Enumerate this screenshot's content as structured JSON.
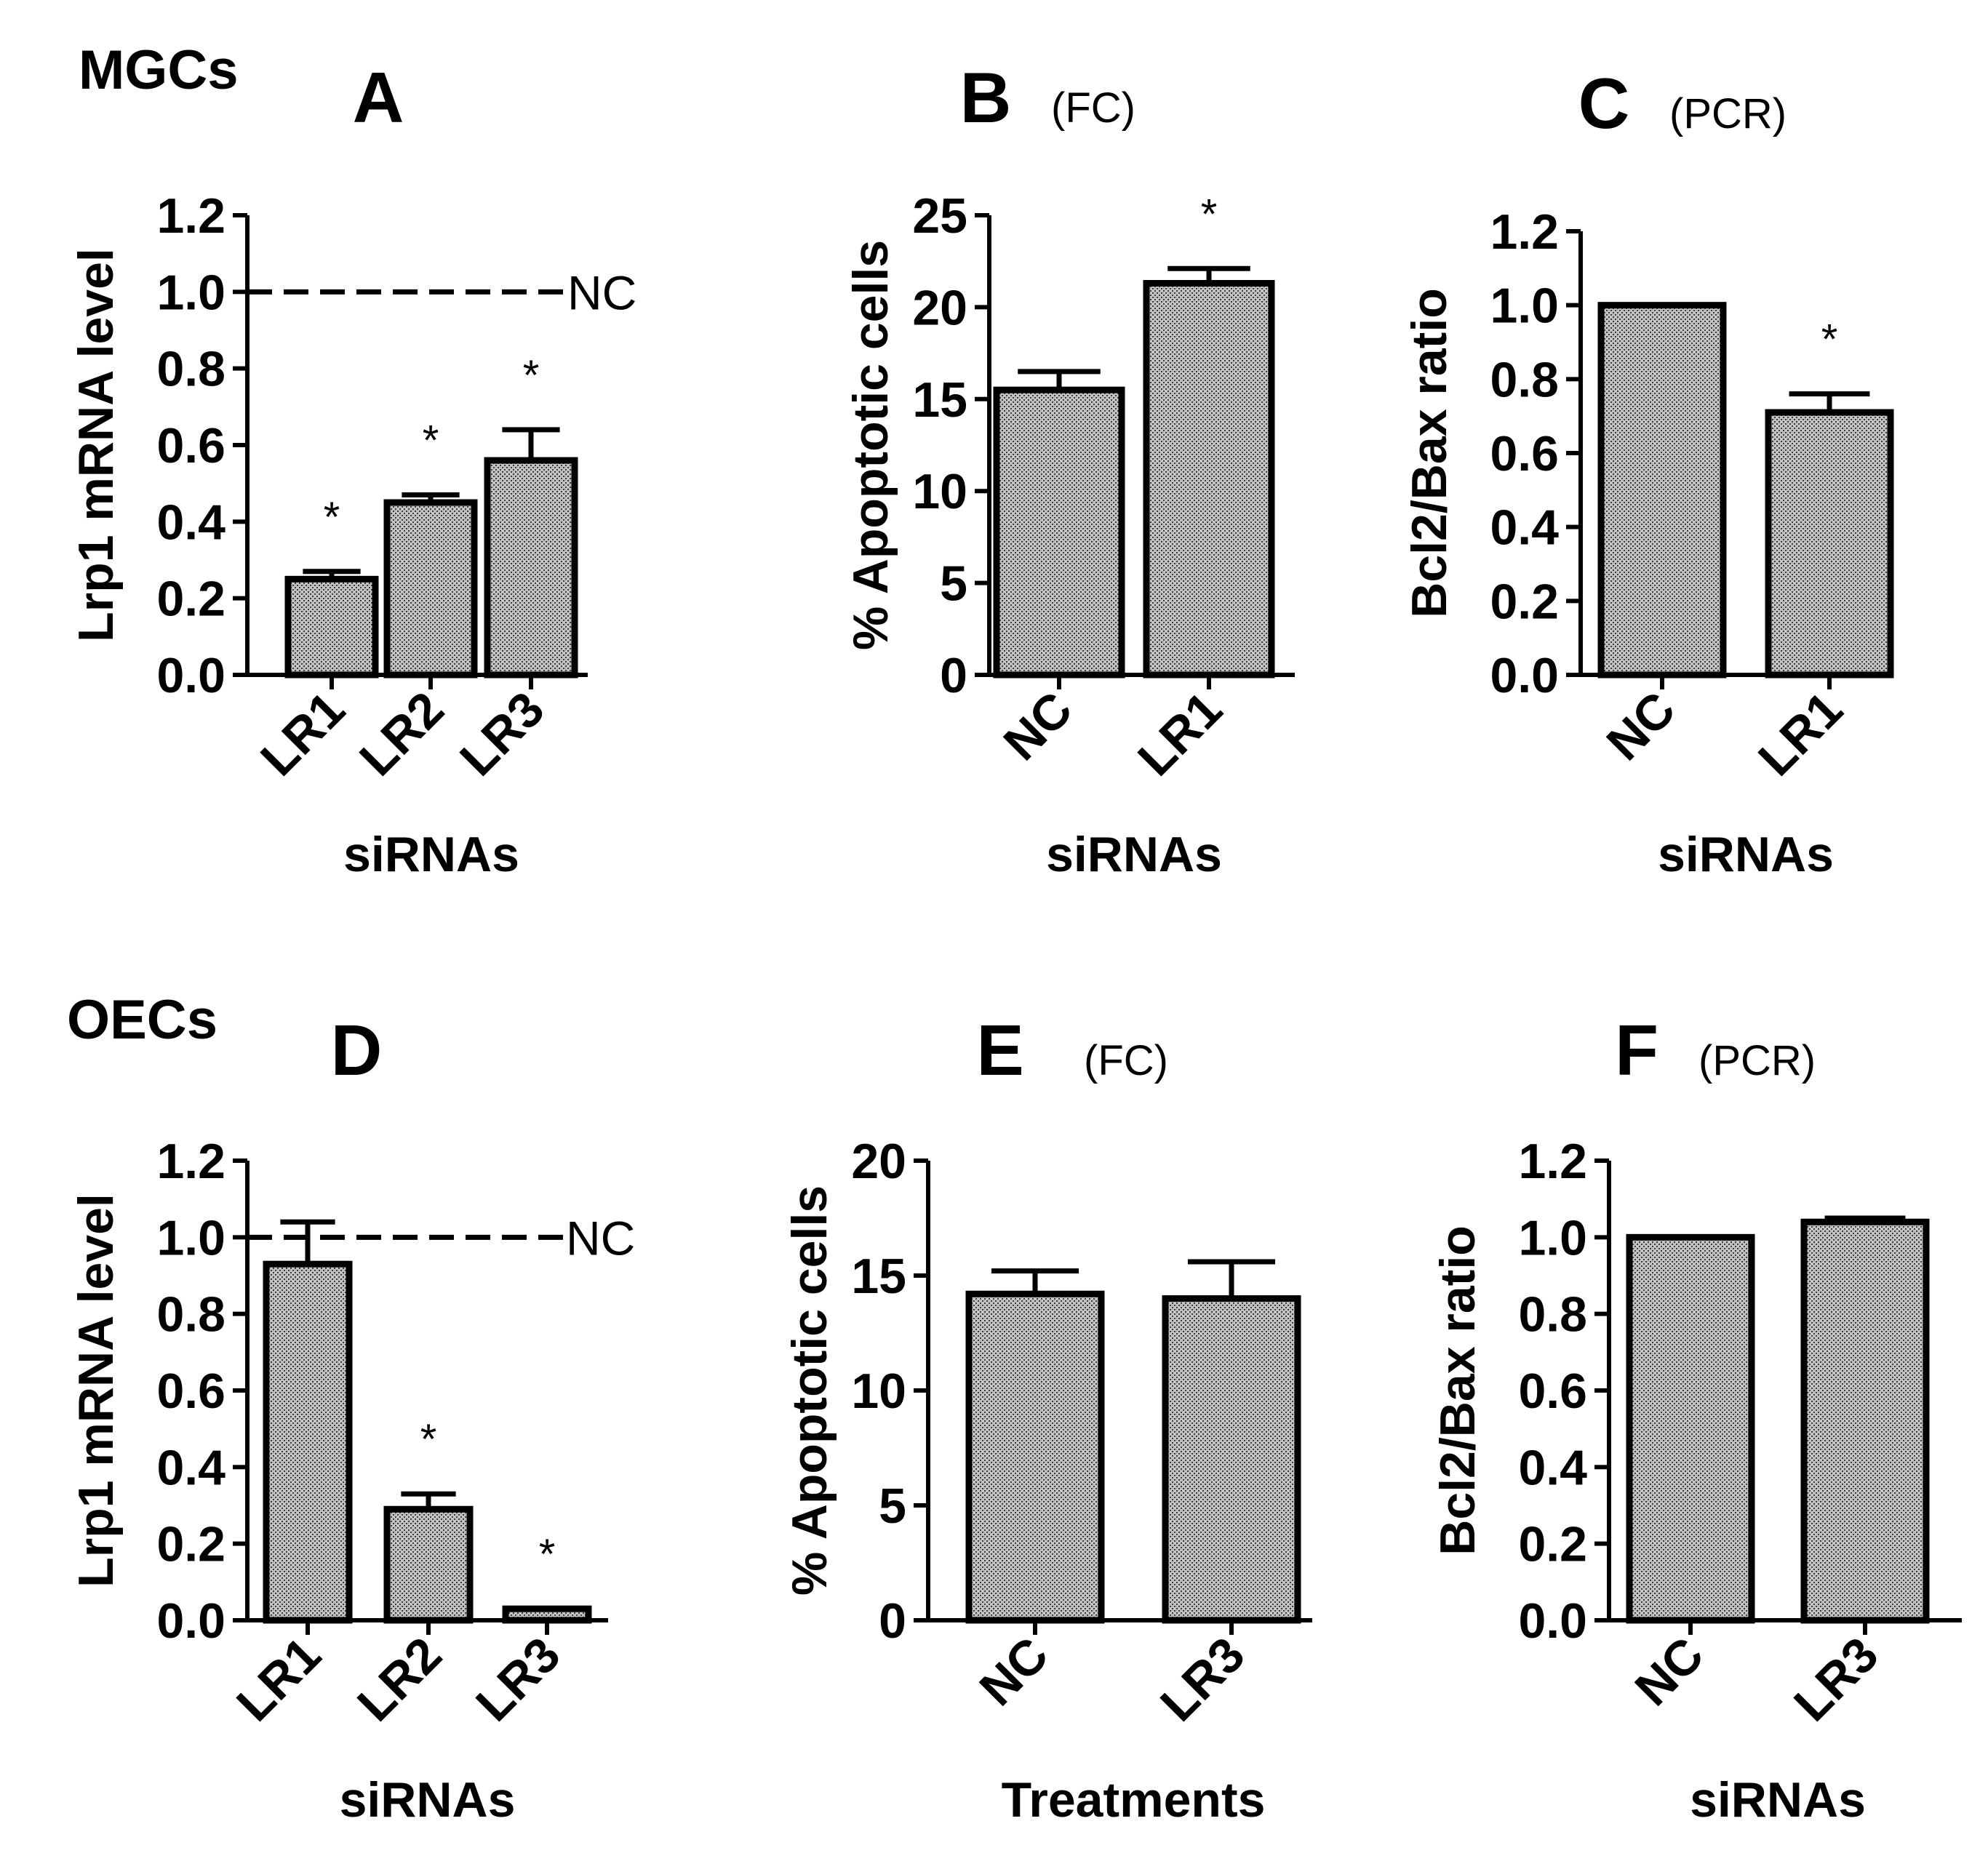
{
  "figure": {
    "row_labels": {
      "top": "MGCs",
      "bottom": "OECs"
    }
  },
  "chart_data": [
    {
      "id": "A",
      "type": "bar",
      "panel_letter": "A",
      "method": "",
      "title": "A",
      "ylabel": "Lrp1 mRNA level",
      "xlabel": "siRNAs",
      "ylim": [
        0,
        1.2
      ],
      "yticks": [
        "0.0",
        "0.2",
        "0.4",
        "0.6",
        "0.8",
        "1.0",
        "1.2"
      ],
      "categories": [
        "LR1",
        "LR2",
        "LR3"
      ],
      "values": [
        0.25,
        0.45,
        0.56
      ],
      "errors": [
        0.02,
        0.02,
        0.08
      ],
      "significance": [
        "*",
        "*",
        "*"
      ],
      "reference_line": {
        "value": 1.0,
        "label": "NC"
      }
    },
    {
      "id": "B",
      "type": "bar",
      "panel_letter": "B",
      "method": "(FC)",
      "title": "B (FC)",
      "ylabel": "% Apoptotic cells",
      "xlabel": "siRNAs",
      "ylim": [
        0,
        25
      ],
      "yticks": [
        "0",
        "5",
        "10",
        "15",
        "20",
        "25"
      ],
      "categories": [
        "NC",
        "LR1"
      ],
      "values": [
        15.5,
        21.3
      ],
      "errors": [
        1.0,
        0.8
      ],
      "significance": [
        "",
        "*"
      ]
    },
    {
      "id": "C",
      "type": "bar",
      "panel_letter": "C",
      "method": "(PCR)",
      "title": "C (PCR)",
      "ylabel": "Bcl2/Bax ratio",
      "xlabel": "siRNAs",
      "ylim": [
        0,
        1.2
      ],
      "yticks": [
        "0.0",
        "0.2",
        "0.4",
        "0.6",
        "0.8",
        "1.0",
        "1.2"
      ],
      "categories": [
        "NC",
        "LR1"
      ],
      "values": [
        1.0,
        0.71
      ],
      "errors": [
        0,
        0.05
      ],
      "significance": [
        "",
        "*"
      ]
    },
    {
      "id": "D",
      "type": "bar",
      "panel_letter": "D",
      "method": "",
      "title": "D",
      "ylabel": "Lrp1 mRNA level",
      "xlabel": "siRNAs",
      "ylim": [
        0,
        1.2
      ],
      "yticks": [
        "0.0",
        "0.2",
        "0.4",
        "0.6",
        "0.8",
        "1.0",
        "1.2"
      ],
      "categories": [
        "LR1",
        "LR2",
        "LR3"
      ],
      "values": [
        0.93,
        0.29,
        0.03
      ],
      "errors": [
        0.11,
        0.04,
        0
      ],
      "significance": [
        "",
        "*",
        "*"
      ],
      "reference_line": {
        "value": 1.0,
        "label": "NC"
      }
    },
    {
      "id": "E",
      "type": "bar",
      "panel_letter": "E",
      "method": "(FC)",
      "title": "E (FC)",
      "ylabel": "% Apoptotic cells",
      "xlabel": "Treatments",
      "ylim": [
        0,
        20
      ],
      "yticks": [
        "0",
        "5",
        "10",
        "15",
        "20"
      ],
      "categories": [
        "NC",
        "LR3"
      ],
      "values": [
        14.2,
        14.0
      ],
      "errors": [
        1.0,
        1.6
      ],
      "significance": [
        "",
        ""
      ]
    },
    {
      "id": "F",
      "type": "bar",
      "panel_letter": "F",
      "method": "(PCR)",
      "title": "F (PCR)",
      "ylabel": "Bcl2/Bax ratio",
      "xlabel": "siRNAs",
      "ylim": [
        0,
        1.2
      ],
      "yticks": [
        "0.0",
        "0.2",
        "0.4",
        "0.6",
        "0.8",
        "1.0",
        "1.2"
      ],
      "categories": [
        "NC",
        "LR3"
      ],
      "values": [
        1.0,
        1.04
      ],
      "errors": [
        0,
        0.01
      ],
      "significance": [
        "",
        ""
      ]
    }
  ]
}
